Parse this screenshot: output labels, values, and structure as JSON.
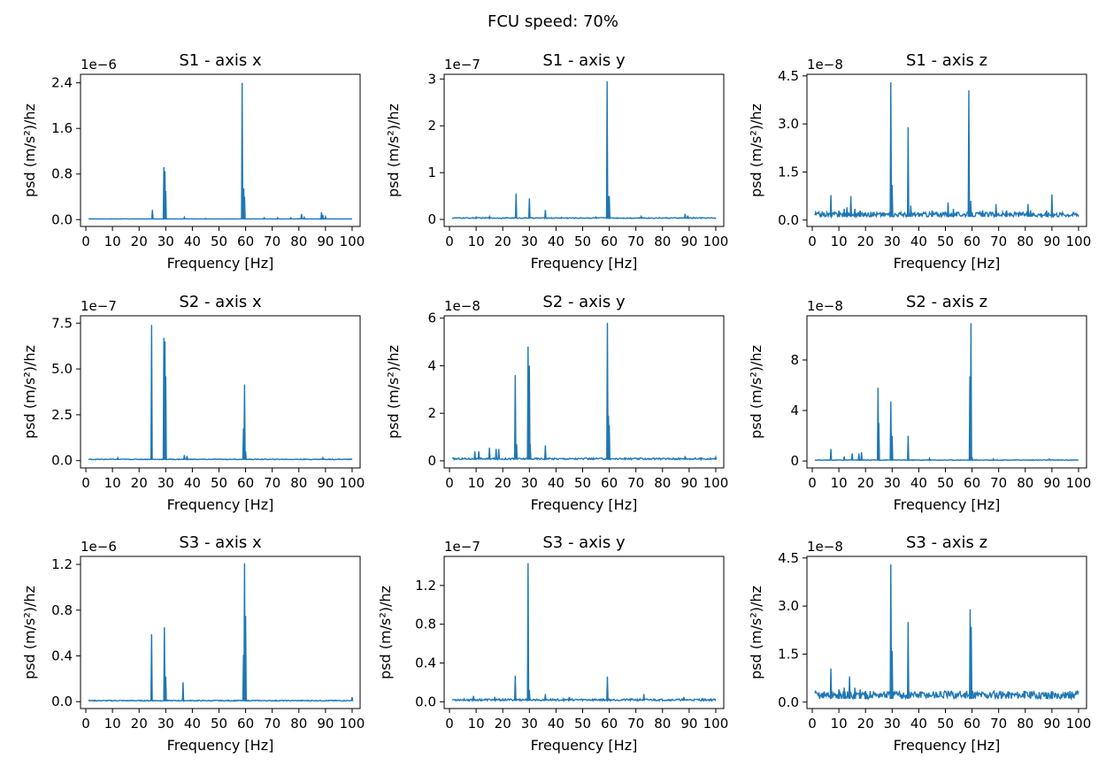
{
  "figure": {
    "suptitle": "FCU speed: 70%"
  },
  "chart_data": [
    {
      "type": "line",
      "title": "S1 - axis x",
      "xlabel": "Frequency [Hz]",
      "ylabel": "psd (m/s²)/hz",
      "offset": "1e−6",
      "xlim": [
        -2,
        103
      ],
      "ylim": [
        -0.12,
        2.55
      ],
      "yticks": [
        "0.0",
        "0.8",
        "1.6",
        "2.4"
      ],
      "ytick_values": [
        0,
        0.8,
        1.6,
        2.4
      ],
      "xticks": [
        "0",
        "10",
        "20",
        "30",
        "40",
        "50",
        "60",
        "70",
        "80",
        "90",
        "100"
      ],
      "line_color": "#1f77b4",
      "baseline": 0.01,
      "noise": 0.005,
      "peaks": [
        [
          25,
          0.17
        ],
        [
          29.3,
          0.92
        ],
        [
          29.7,
          0.85
        ],
        [
          30,
          0.5
        ],
        [
          37,
          0.04
        ],
        [
          45,
          0.02
        ],
        [
          58.7,
          2.4
        ],
        [
          59.3,
          0.55
        ],
        [
          59.6,
          0.4
        ],
        [
          67,
          0.03
        ],
        [
          72,
          0.03
        ],
        [
          77,
          0.03
        ],
        [
          81,
          0.1
        ],
        [
          82,
          0.04
        ],
        [
          88.5,
          0.13
        ],
        [
          89,
          0.08
        ],
        [
          90,
          0.05
        ]
      ]
    },
    {
      "type": "line",
      "title": "S1 - axis y",
      "xlabel": "Frequency [Hz]",
      "ylabel": "psd (m/s²)/hz",
      "offset": "1e−7",
      "xlim": [
        -2,
        103
      ],
      "ylim": [
        -0.15,
        3.1
      ],
      "yticks": [
        "0",
        "1",
        "2",
        "3"
      ],
      "ytick_values": [
        0,
        1,
        2,
        3
      ],
      "xticks": [
        "0",
        "10",
        "20",
        "30",
        "40",
        "50",
        "60",
        "70",
        "80",
        "90",
        "100"
      ],
      "line_color": "#1f77b4",
      "baseline": 0.02,
      "noise": 0.02,
      "peaks": [
        [
          10,
          0.05
        ],
        [
          15,
          0.06
        ],
        [
          25,
          0.55
        ],
        [
          30,
          0.45
        ],
        [
          36,
          0.2
        ],
        [
          42,
          0.04
        ],
        [
          55,
          0.05
        ],
        [
          59.2,
          2.95
        ],
        [
          59.6,
          0.5
        ],
        [
          60,
          0.5
        ],
        [
          72,
          0.06
        ],
        [
          88.5,
          0.12
        ],
        [
          89.5,
          0.08
        ]
      ]
    },
    {
      "type": "line",
      "title": "S1 - axis z",
      "xlabel": "Frequency [Hz]",
      "ylabel": "psd (m/s²)/hz",
      "offset": "1e−8",
      "xlim": [
        -2,
        103
      ],
      "ylim": [
        -0.2,
        4.55
      ],
      "yticks": [
        "0.0",
        "1.5",
        "3.0",
        "4.5"
      ],
      "ytick_values": [
        0,
        1.5,
        3,
        4.5
      ],
      "xticks": [
        "0",
        "10",
        "20",
        "30",
        "40",
        "50",
        "60",
        "70",
        "80",
        "90",
        "100"
      ],
      "line_color": "#1f77b4",
      "baseline": 0.1,
      "noise": 0.15,
      "peaks": [
        [
          7,
          0.78
        ],
        [
          10,
          0.3
        ],
        [
          12,
          0.35
        ],
        [
          13,
          0.4
        ],
        [
          14.5,
          0.75
        ],
        [
          16,
          0.35
        ],
        [
          18,
          0.3
        ],
        [
          22,
          0.25
        ],
        [
          29.5,
          4.3
        ],
        [
          30,
          1.1
        ],
        [
          36,
          2.9
        ],
        [
          37,
          0.45
        ],
        [
          45,
          0.3
        ],
        [
          51,
          0.55
        ],
        [
          53,
          0.35
        ],
        [
          58.8,
          4.05
        ],
        [
          59.5,
          0.6
        ],
        [
          64,
          0.3
        ],
        [
          69,
          0.5
        ],
        [
          73,
          0.3
        ],
        [
          81,
          0.5
        ],
        [
          82,
          0.3
        ],
        [
          88,
          0.3
        ],
        [
          90,
          0.8
        ]
      ]
    },
    {
      "type": "line",
      "title": "S2 - axis x",
      "xlabel": "Frequency [Hz]",
      "ylabel": "psd (m/s²)/hz",
      "offset": "1e−7",
      "xlim": [
        -2,
        103
      ],
      "ylim": [
        -0.4,
        7.9
      ],
      "yticks": [
        "0.0",
        "2.5",
        "5.0",
        "7.5"
      ],
      "ytick_values": [
        0,
        2.5,
        5,
        7.5
      ],
      "xticks": [
        "0",
        "10",
        "20",
        "30",
        "40",
        "50",
        "60",
        "70",
        "80",
        "90",
        "100"
      ],
      "line_color": "#1f77b4",
      "baseline": 0.05,
      "noise": 0.04,
      "peaks": [
        [
          12,
          0.15
        ],
        [
          24.7,
          7.4
        ],
        [
          29.3,
          6.7
        ],
        [
          29.7,
          6.5
        ],
        [
          30,
          4.6
        ],
        [
          37,
          0.3
        ],
        [
          38,
          0.25
        ],
        [
          59.2,
          1.75
        ],
        [
          59.6,
          4.15
        ],
        [
          60,
          0.5
        ],
        [
          89,
          0.15
        ]
      ]
    },
    {
      "type": "line",
      "title": "S2 - axis y",
      "xlabel": "Frequency [Hz]",
      "ylabel": "psd (m/s²)/hz",
      "offset": "1e−8",
      "xlim": [
        -2,
        103
      ],
      "ylim": [
        -0.3,
        6.1
      ],
      "yticks": [
        "0",
        "2",
        "4",
        "6"
      ],
      "ytick_values": [
        0,
        2,
        4,
        6
      ],
      "xticks": [
        "0",
        "10",
        "20",
        "30",
        "40",
        "50",
        "60",
        "70",
        "80",
        "90",
        "100"
      ],
      "line_color": "#1f77b4",
      "baseline": 0.05,
      "noise": 0.07,
      "peaks": [
        [
          9.5,
          0.4
        ],
        [
          11,
          0.4
        ],
        [
          15,
          0.55
        ],
        [
          17.5,
          0.5
        ],
        [
          18.5,
          0.5
        ],
        [
          24.7,
          3.6
        ],
        [
          25.2,
          0.7
        ],
        [
          29.5,
          4.8
        ],
        [
          30,
          4.0
        ],
        [
          30.3,
          0.7
        ],
        [
          36,
          0.65
        ],
        [
          59.3,
          5.8
        ],
        [
          59.7,
          1.9
        ],
        [
          60,
          1.5
        ],
        [
          88.5,
          0.2
        ],
        [
          100,
          0.15
        ]
      ]
    },
    {
      "type": "line",
      "title": "S2 - axis z",
      "xlabel": "Frequency [Hz]",
      "ylabel": "psd (m/s²)/hz",
      "offset": "1e−8",
      "xlim": [
        -2,
        103
      ],
      "ylim": [
        -0.55,
        11.5
      ],
      "yticks": [
        "0",
        "4",
        "8"
      ],
      "ytick_values": [
        0,
        4,
        8
      ],
      "xticks": [
        "0",
        "10",
        "20",
        "30",
        "40",
        "50",
        "60",
        "70",
        "80",
        "90",
        "100"
      ],
      "line_color": "#1f77b4",
      "baseline": 0.05,
      "noise": 0.05,
      "peaks": [
        [
          7,
          0.95
        ],
        [
          12,
          0.35
        ],
        [
          15,
          0.6
        ],
        [
          17.5,
          0.6
        ],
        [
          18.5,
          0.7
        ],
        [
          24.7,
          5.8
        ],
        [
          25,
          3.0
        ],
        [
          29.5,
          4.7
        ],
        [
          30,
          2.0
        ],
        [
          36,
          2.0
        ],
        [
          44,
          0.2
        ],
        [
          59.2,
          6.7
        ],
        [
          59.6,
          10.9
        ],
        [
          60,
          0.3
        ],
        [
          68,
          0.15
        ],
        [
          89,
          0.15
        ]
      ]
    },
    {
      "type": "line",
      "title": "S3 - axis x",
      "xlabel": "Frequency [Hz]",
      "ylabel": "psd (m/s²)/hz",
      "offset": "1e−6",
      "xlim": [
        -2,
        103
      ],
      "ylim": [
        -0.06,
        1.27
      ],
      "yticks": [
        "0.0",
        "0.4",
        "0.8",
        "1.2"
      ],
      "ytick_values": [
        0,
        0.4,
        0.8,
        1.2
      ],
      "xticks": [
        "0",
        "10",
        "20",
        "30",
        "40",
        "50",
        "60",
        "70",
        "80",
        "90",
        "100"
      ],
      "line_color": "#1f77b4",
      "baseline": 0.005,
      "noise": 0.008,
      "peaks": [
        [
          24.7,
          0.59
        ],
        [
          29.5,
          0.65
        ],
        [
          30,
          0.22
        ],
        [
          36.5,
          0.17
        ],
        [
          59.2,
          0.41
        ],
        [
          59.6,
          1.21
        ],
        [
          60,
          0.75
        ],
        [
          100,
          0.04
        ]
      ]
    },
    {
      "type": "line",
      "title": "S3 - axis y",
      "xlabel": "Frequency [Hz]",
      "ylabel": "psd (m/s²)/hz",
      "offset": "1e−7",
      "xlim": [
        -2,
        103
      ],
      "ylim": [
        -0.07,
        1.5
      ],
      "yticks": [
        "0.0",
        "0.4",
        "0.8",
        "1.2"
      ],
      "ytick_values": [
        0,
        0.4,
        0.8,
        1.2
      ],
      "xticks": [
        "0",
        "10",
        "20",
        "30",
        "40",
        "50",
        "60",
        "70",
        "80",
        "90",
        "100"
      ],
      "line_color": "#1f77b4",
      "baseline": 0.01,
      "noise": 0.02,
      "peaks": [
        [
          9,
          0.06
        ],
        [
          17,
          0.05
        ],
        [
          24.7,
          0.27
        ],
        [
          29.5,
          1.43
        ],
        [
          30,
          0.12
        ],
        [
          36,
          0.08
        ],
        [
          45,
          0.05
        ],
        [
          59.3,
          0.26
        ],
        [
          73,
          0.08
        ],
        [
          88,
          0.05
        ]
      ]
    },
    {
      "type": "line",
      "title": "S3 - axis z",
      "xlabel": "Frequency [Hz]",
      "ylabel": "psd (m/s²)/hz",
      "offset": "1e−8",
      "xlim": [
        -2,
        103
      ],
      "ylim": [
        -0.2,
        4.55
      ],
      "yticks": [
        "0.0",
        "1.5",
        "3.0",
        "4.5"
      ],
      "ytick_values": [
        0,
        1.5,
        3,
        4.5
      ],
      "xticks": [
        "0",
        "10",
        "20",
        "30",
        "40",
        "50",
        "60",
        "70",
        "80",
        "90",
        "100"
      ],
      "line_color": "#1f77b4",
      "baseline": 0.1,
      "noise": 0.25,
      "peaks": [
        [
          7,
          1.05
        ],
        [
          10,
          0.4
        ],
        [
          12,
          0.45
        ],
        [
          14,
          0.8
        ],
        [
          16,
          0.45
        ],
        [
          18,
          0.4
        ],
        [
          20,
          0.35
        ],
        [
          29.5,
          4.3
        ],
        [
          30,
          1.6
        ],
        [
          36,
          2.5
        ],
        [
          59.3,
          2.9
        ],
        [
          59.7,
          2.35
        ],
        [
          88,
          0.3
        ],
        [
          90,
          0.35
        ]
      ]
    }
  ]
}
